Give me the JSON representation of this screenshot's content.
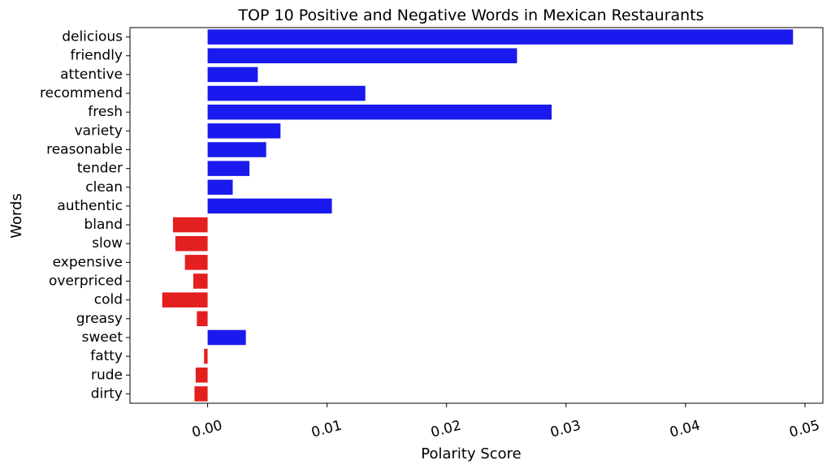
{
  "chart_data": {
    "type": "bar",
    "orientation": "horizontal",
    "title": "TOP 10 Positive and Negative Words in Mexican Restaurants",
    "xlabel": "Polarity Score",
    "ylabel": "Words",
    "categories": [
      "delicious",
      "friendly",
      "attentive",
      "recommend",
      "fresh",
      "variety",
      "reasonable",
      "tender",
      "clean",
      "authentic",
      "bland",
      "slow",
      "expensive",
      "overpriced",
      "cold",
      "greasy",
      "sweet",
      "fatty",
      "rude",
      "dirty"
    ],
    "values": [
      0.049,
      0.0259,
      0.0042,
      0.0132,
      0.0288,
      0.0061,
      0.0049,
      0.0035,
      0.0021,
      0.0104,
      -0.0029,
      -0.0027,
      -0.0019,
      -0.0012,
      -0.0038,
      -0.0009,
      0.0032,
      -0.0003,
      -0.001,
      -0.0011
    ],
    "xlim": [
      -0.0065,
      0.0515
    ],
    "xticks": [
      0.0,
      0.01,
      0.02,
      0.03,
      0.04,
      0.05
    ],
    "xtick_labels": [
      "0.00",
      "0.01",
      "0.02",
      "0.03",
      "0.04",
      "0.05"
    ],
    "colors": {
      "positive": "#1a1aee",
      "negative": "#e41f1f"
    },
    "grid": false,
    "legend": "none"
  }
}
